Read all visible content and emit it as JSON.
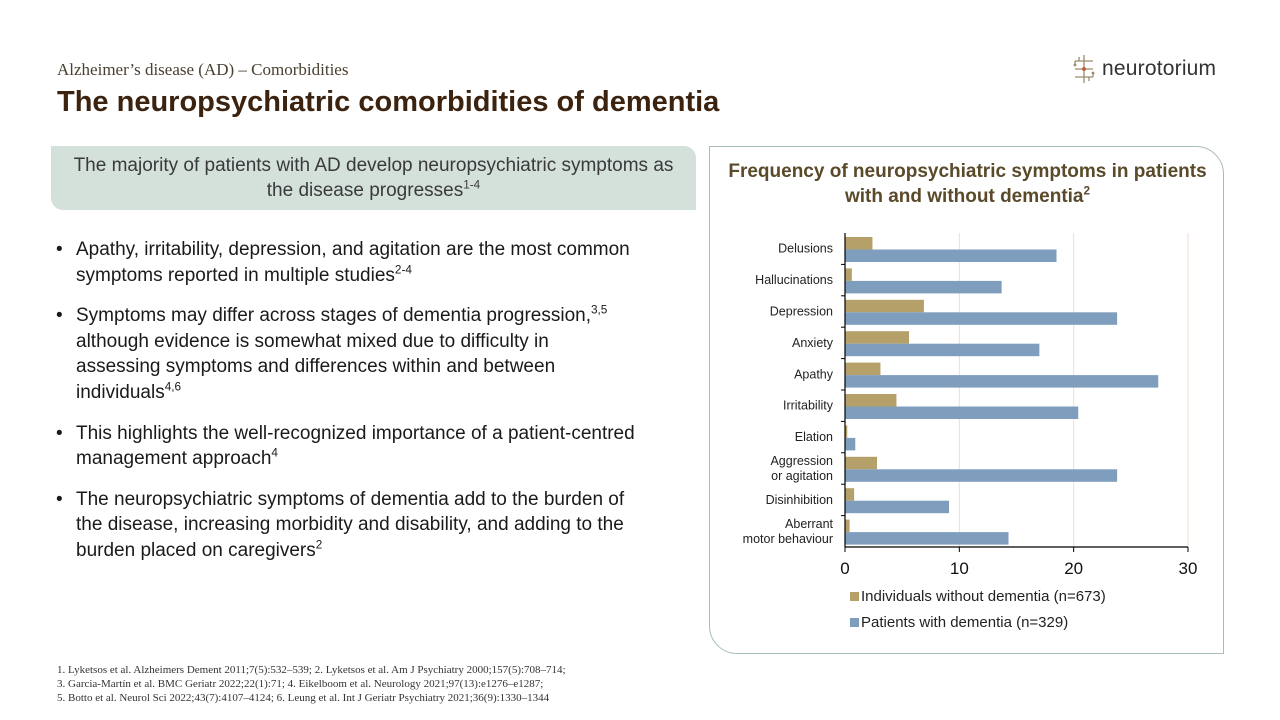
{
  "header": {
    "subtitle": "Alzheimer’s disease (AD) – Comorbidities",
    "title": "The neuropsychiatric comorbidities of dementia",
    "logo_text": "neurotorium"
  },
  "highlight": {
    "text": "The majority of patients with AD develop neuropsychiatric symptoms as the disease progresses",
    "sup": "1-4"
  },
  "bullets": [
    {
      "text": "Apathy, irritability, depression, and agitation are the most common symptoms reported in multiple studies",
      "sup": "2-4"
    },
    {
      "text_a": "Symptoms may differ across stages of dementia progression,",
      "sup_a": "3,5",
      "text_b": " although evidence is somewhat mixed due to difficulty in assessing symptoms and differences within and between individuals",
      "sup_b": "4,6"
    },
    {
      "text": "This highlights the well-recognized importance of a patient-centred management approach",
      "sup": "4"
    },
    {
      "text": "The neuropsychiatric symptoms of dementia add to the burden of the disease, increasing morbidity and disability, and adding to the burden placed on caregivers",
      "sup": "2"
    }
  ],
  "references": [
    "1. Lyketsos et al. Alzheimers Dement 2011;7(5):532–539; 2. Lyketsos et al. Am J Psychiatry 2000;157(5):708–714;",
    "3. Garcia-Martín et al. BMC Geriatr 2022;22(1):71; 4. Eikelboom et al. Neurology 2021;97(13):e1276–e1287;",
    "5. Botto et al. Neurol Sci 2022;43(7):4107–4124; 6. Leung et al. Int J Geriatr Psychiatry 2021;36(9):1330–1344"
  ],
  "chart_data": {
    "type": "bar",
    "orientation": "horizontal",
    "title": "Frequency of neuropsychiatric symptoms in patients with and without dementia",
    "title_sup": "2",
    "categories": [
      [
        "Delusions"
      ],
      [
        "Hallucinations"
      ],
      [
        "Depression"
      ],
      [
        "Anxiety"
      ],
      [
        "Apathy"
      ],
      [
        "Irritability"
      ],
      [
        "Elation"
      ],
      [
        "Aggression",
        "or agitation"
      ],
      [
        "Disinhibition"
      ],
      [
        "Aberrant",
        "motor behaviour"
      ]
    ],
    "series": [
      {
        "name": "Individuals without dementia (n=673)",
        "color": "#b5a06a",
        "values": [
          2.4,
          0.6,
          6.9,
          5.6,
          3.1,
          4.5,
          0.2,
          2.8,
          0.8,
          0.4
        ]
      },
      {
        "name": "Patients with dementia (n=329)",
        "color": "#7f9ebd",
        "values": [
          18.5,
          13.7,
          23.8,
          17.0,
          27.4,
          20.4,
          0.9,
          23.8,
          9.1,
          14.3
        ]
      }
    ],
    "xlim": [
      0,
      30
    ],
    "xticks": [
      0,
      10,
      20,
      30
    ],
    "grid": true,
    "legend_position": "bottom"
  }
}
